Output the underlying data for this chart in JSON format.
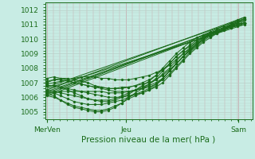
{
  "background_color": "#c8ece4",
  "plot_bg_color": "#c8ece4",
  "grid_color_v": "#c8a0a8",
  "grid_color_h": "#b8d0c8",
  "line_color": "#1a6b1a",
  "title": "Pression niveau de la mer( hPa )",
  "ylim": [
    1004.5,
    1012.5
  ],
  "yticks": [
    1005,
    1006,
    1007,
    1008,
    1009,
    1010,
    1011,
    1012
  ],
  "xtick_labels": [
    "MerVen",
    "Jeu",
    "Sam"
  ],
  "xtick_positions": [
    0.0,
    0.4,
    0.97
  ],
  "straight_lines": [
    [
      1006.1,
      1011.2
    ],
    [
      1006.3,
      1011.3
    ],
    [
      1006.4,
      1011.1
    ],
    [
      1006.6,
      1011.0
    ],
    [
      1006.7,
      1011.4
    ],
    [
      1006.5,
      1011.5
    ],
    [
      1006.2,
      1011.3
    ]
  ],
  "wiggly_series": [
    [
      1006.2,
      1006.1,
      1005.8,
      1005.5,
      1005.3,
      1005.2,
      1005.1,
      1005.0,
      1005.0,
      1005.1,
      1005.3,
      1005.6,
      1005.9,
      1006.1,
      1006.3,
      1006.5,
      1006.8,
      1007.3,
      1007.8,
      1008.3,
      1008.8,
      1009.2,
      1009.6,
      1010.0,
      1010.3,
      1010.6,
      1010.8,
      1010.9,
      1011.0,
      1011.1
    ],
    [
      1006.4,
      1006.3,
      1006.1,
      1005.9,
      1005.7,
      1005.6,
      1005.5,
      1005.5,
      1005.5,
      1005.6,
      1005.7,
      1005.8,
      1006.0,
      1006.2,
      1006.4,
      1006.6,
      1006.9,
      1007.3,
      1007.8,
      1008.3,
      1008.8,
      1009.3,
      1009.7,
      1010.0,
      1010.3,
      1010.6,
      1010.8,
      1010.9,
      1011.0,
      1011.1
    ],
    [
      1006.8,
      1006.8,
      1006.7,
      1006.6,
      1006.5,
      1006.4,
      1006.3,
      1006.2,
      1006.1,
      1006.0,
      1006.0,
      1006.0,
      1006.1,
      1006.2,
      1006.3,
      1006.5,
      1006.7,
      1007.0,
      1007.5,
      1008.0,
      1008.5,
      1009.0,
      1009.4,
      1009.8,
      1010.1,
      1010.4,
      1010.6,
      1010.8,
      1011.0,
      1011.1
    ],
    [
      1007.1,
      1007.2,
      1007.2,
      1007.1,
      1007.0,
      1006.9,
      1006.8,
      1006.7,
      1006.6,
      1006.5,
      1006.4,
      1006.4,
      1006.4,
      1006.5,
      1006.6,
      1006.7,
      1006.9,
      1007.2,
      1007.6,
      1008.1,
      1008.6,
      1009.1,
      1009.5,
      1009.9,
      1010.2,
      1010.4,
      1010.7,
      1010.8,
      1010.9,
      1011.0
    ],
    [
      1007.3,
      1007.4,
      1007.3,
      1007.2,
      1007.0,
      1006.9,
      1006.8,
      1006.7,
      1006.7,
      1006.6,
      1006.6,
      1006.7,
      1006.7,
      1006.8,
      1006.9,
      1007.0,
      1007.2,
      1007.5,
      1007.9,
      1008.3,
      1008.8,
      1009.2,
      1009.6,
      1010.0,
      1010.3,
      1010.5,
      1010.7,
      1010.9,
      1011.0,
      1011.1
    ],
    [
      1006.5,
      1006.4,
      1006.3,
      1006.2,
      1006.1,
      1006.0,
      1005.9,
      1005.8,
      1005.8,
      1005.8,
      1005.9,
      1006.1,
      1006.3,
      1006.5,
      1006.7,
      1006.9,
      1007.2,
      1007.6,
      1008.0,
      1008.5,
      1009.0,
      1009.4,
      1009.8,
      1010.1,
      1010.4,
      1010.6,
      1010.8,
      1010.9,
      1011.0,
      1011.1
    ],
    [
      1006.3,
      1006.3,
      1006.4,
      1006.4,
      1006.4,
      1006.4,
      1006.4,
      1006.4,
      1006.4,
      1006.3,
      1006.3,
      1006.3,
      1006.4,
      1006.5,
      1006.6,
      1006.8,
      1007.0,
      1007.3,
      1007.8,
      1008.3,
      1008.8,
      1009.2,
      1009.6,
      1010.0,
      1010.3,
      1010.5,
      1010.7,
      1010.9,
      1011.0,
      1011.1
    ],
    [
      1006.1,
      1006.0,
      1005.8,
      1005.6,
      1005.4,
      1005.3,
      1005.2,
      1005.1,
      1005.1,
      1005.2,
      1005.4,
      1005.6,
      1006.0,
      1006.3,
      1006.6,
      1006.9,
      1007.3,
      1007.8,
      1008.3,
      1008.8,
      1009.2,
      1009.5,
      1009.8,
      1010.1,
      1010.4,
      1010.6,
      1010.8,
      1011.0,
      1011.2,
      1011.4
    ],
    [
      1006.8,
      1006.8,
      1006.7,
      1006.5,
      1006.3,
      1006.1,
      1005.9,
      1005.8,
      1005.7,
      1005.7,
      1005.8,
      1006.0,
      1006.2,
      1006.5,
      1006.8,
      1007.1,
      1007.5,
      1008.0,
      1008.5,
      1009.0,
      1009.4,
      1009.8,
      1010.1,
      1010.3,
      1010.5,
      1010.7,
      1010.9,
      1011.1,
      1011.3,
      1011.5
    ],
    [
      1007.0,
      1007.2,
      1007.3,
      1007.3,
      1007.2,
      1007.1,
      1007.0,
      1006.8,
      1006.7,
      1006.6,
      1006.6,
      1006.6,
      1006.7,
      1006.8,
      1007.0,
      1007.2,
      1007.5,
      1007.9,
      1008.3,
      1008.8,
      1009.2,
      1009.6,
      1009.9,
      1010.2,
      1010.4,
      1010.6,
      1010.8,
      1011.0,
      1011.2,
      1011.4
    ],
    [
      1006.9,
      1007.0,
      1007.1,
      1007.2,
      1007.3,
      1007.4,
      1007.4,
      1007.4,
      1007.3,
      1007.3,
      1007.2,
      1007.2,
      1007.2,
      1007.3,
      1007.4,
      1007.5,
      1007.7,
      1007.9,
      1008.2,
      1008.6,
      1009.0,
      1009.3,
      1009.7,
      1010.0,
      1010.3,
      1010.5,
      1010.7,
      1010.9,
      1011.1,
      1011.3
    ]
  ]
}
